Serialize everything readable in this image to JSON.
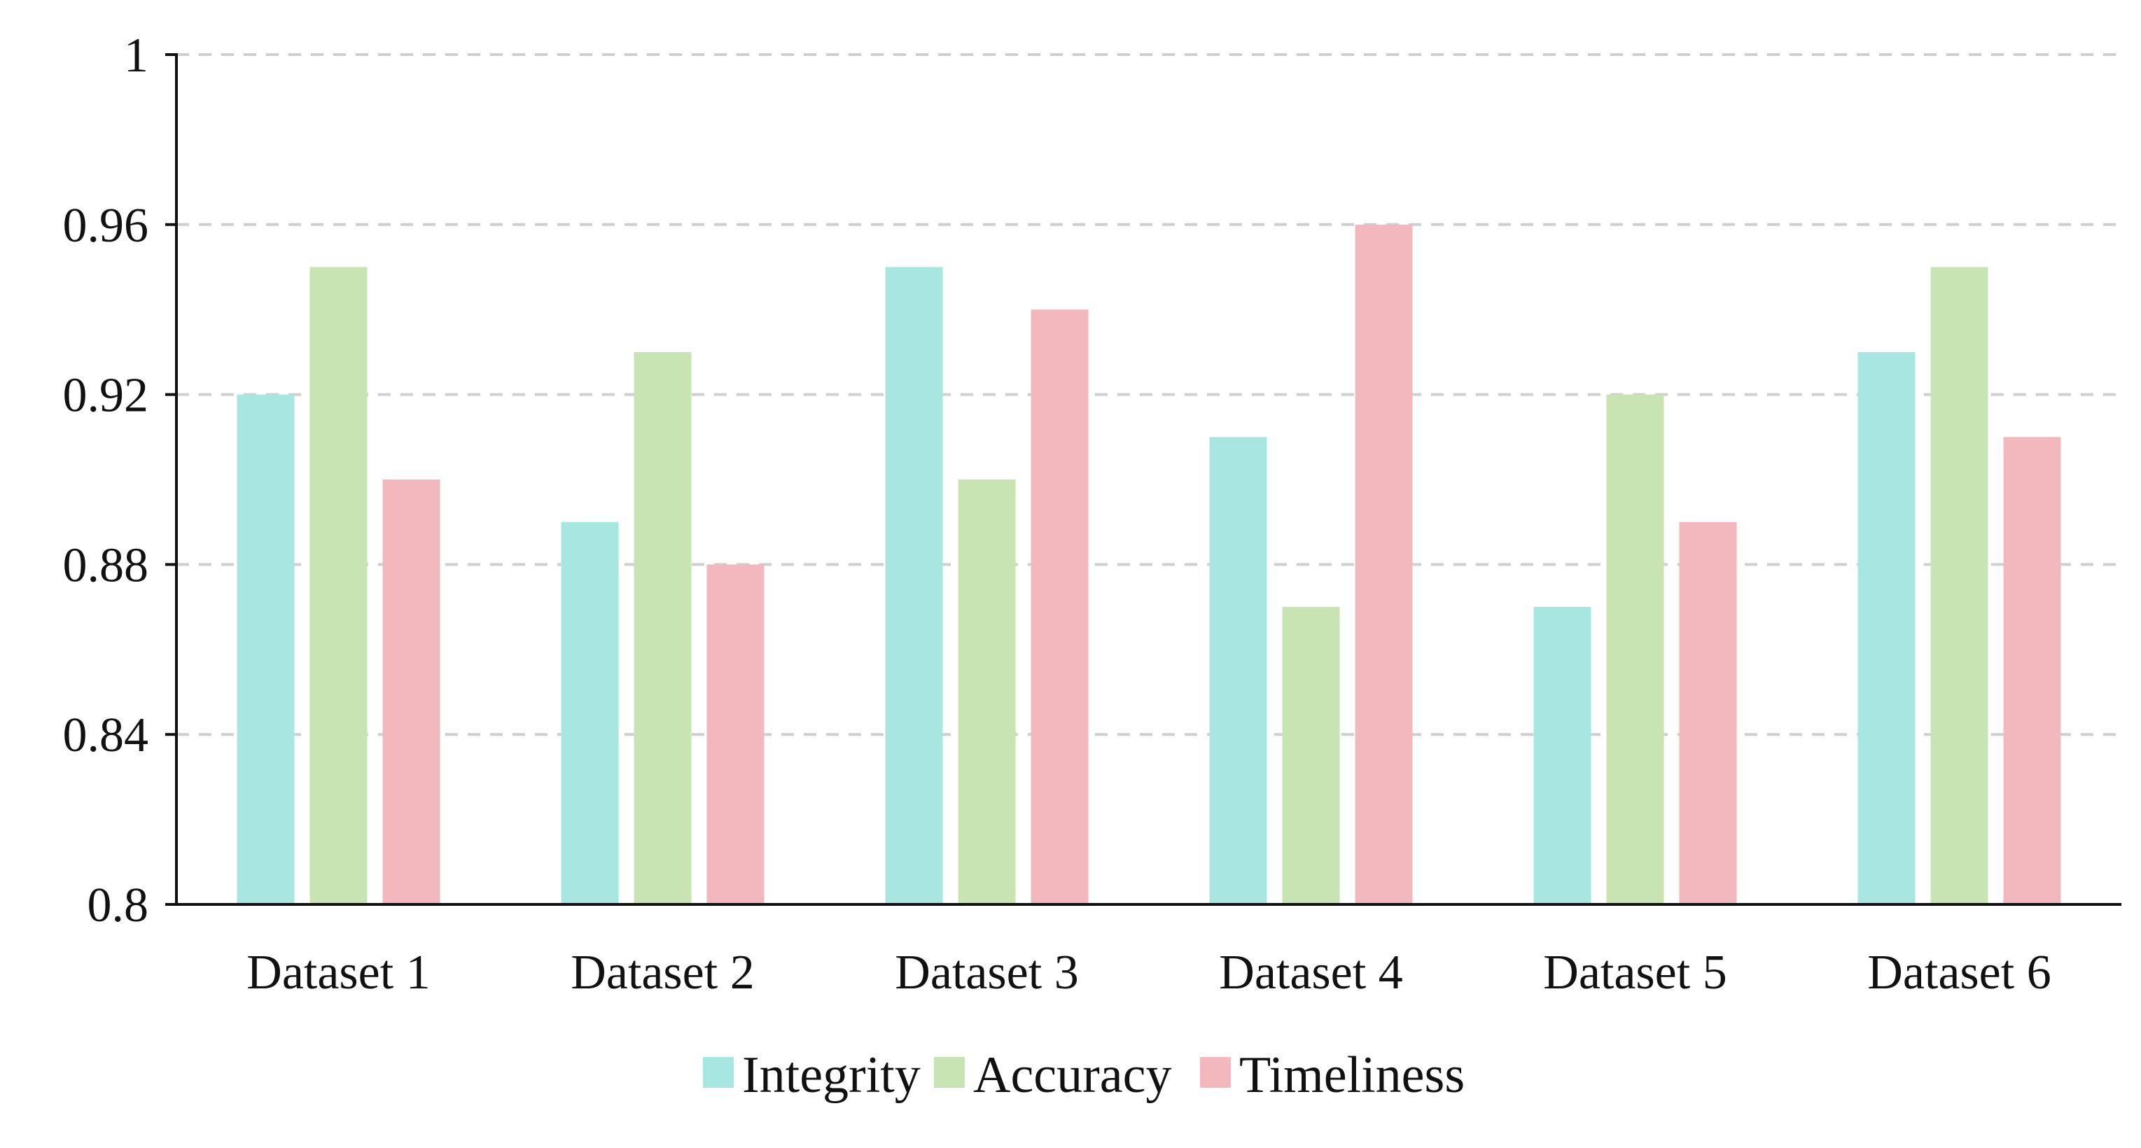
{
  "colors": {
    "integrity": "#a8e6e2",
    "accuracy": "#c8e4b2",
    "timeliness": "#f3b7be"
  },
  "chart_data": {
    "type": "bar",
    "title": "",
    "xlabel": "",
    "ylabel": "",
    "ylim": [
      0.8,
      1.0
    ],
    "yticks": [
      "0.8",
      "0.84",
      "0.88",
      "0.92",
      "0.96",
      "1"
    ],
    "grid": true,
    "legend_position": "bottom",
    "categories": [
      "Dataset 1",
      "Dataset 2",
      "Dataset 3",
      "Dataset 4",
      "Dataset 5",
      "Dataset 6"
    ],
    "series": [
      {
        "name": "Integrity",
        "color": "#a8e6e2",
        "values": [
          0.92,
          0.89,
          0.95,
          0.91,
          0.87,
          0.93
        ]
      },
      {
        "name": "Accuracy",
        "color": "#c8e4b2",
        "values": [
          0.95,
          0.93,
          0.9,
          0.87,
          0.92,
          0.95
        ]
      },
      {
        "name": "Timeliness",
        "color": "#f3b7be",
        "values": [
          0.9,
          0.88,
          0.94,
          0.96,
          0.89,
          0.91
        ]
      }
    ]
  }
}
